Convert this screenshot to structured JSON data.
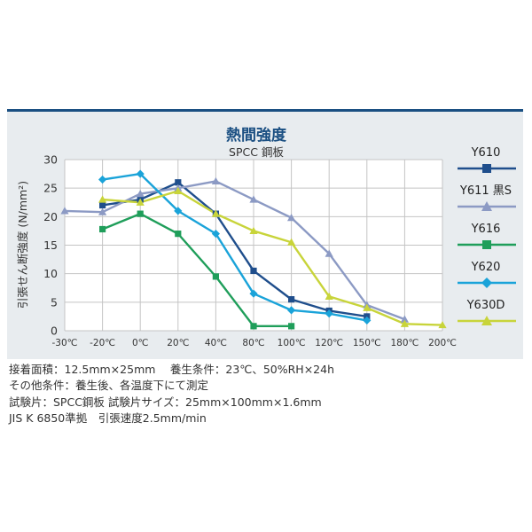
{
  "chart_data": {
    "type": "line",
    "title": "熱間強度",
    "subtitle": "SPCC 鋼板",
    "ylabel": "引張せん断強度 (N/mm²)",
    "xlabel": "",
    "ylim": [
      0,
      30
    ],
    "yticks": [
      "0",
      "5",
      "10",
      "15",
      "20",
      "25",
      "30"
    ],
    "x": [
      "-30℃",
      "-20℃",
      "0℃",
      "20℃",
      "40℃",
      "80℃",
      "100℃",
      "120℃",
      "150℃",
      "180℃",
      "200℃"
    ],
    "grid": true,
    "legend_position": "right",
    "series": [
      {
        "name": "Y610",
        "color": "#1f4e8c",
        "marker": "square",
        "values": [
          null,
          22,
          23,
          26,
          20.5,
          10.5,
          5.5,
          3.5,
          2.5,
          null,
          null
        ]
      },
      {
        "name": "Y611 黒S",
        "color": "#8c9ac4",
        "marker": "triangle",
        "values": [
          21,
          20.8,
          24,
          25,
          26.2,
          23,
          19.8,
          13.5,
          4.5,
          2,
          null
        ]
      },
      {
        "name": "Y616",
        "color": "#1f9e5a",
        "marker": "square",
        "values": [
          null,
          17.8,
          20.5,
          17,
          9.5,
          0.8,
          0.8,
          null,
          null,
          null,
          null
        ]
      },
      {
        "name": "Y620",
        "color": "#1aa3d9",
        "marker": "diamond",
        "values": [
          null,
          26.5,
          27.5,
          21,
          17,
          6.5,
          3.6,
          3,
          1.8,
          null,
          null
        ]
      },
      {
        "name": "Y630D",
        "color": "#c8d43a",
        "marker": "triangle",
        "values": [
          null,
          23,
          22.5,
          24.5,
          20.5,
          17.5,
          15.5,
          6,
          4,
          1.2,
          1
        ],
        "dashed_segment": [
          3,
          5
        ]
      }
    ]
  },
  "notes": [
    "接着面積：12.5mm×25mm　 養生条件：23℃、50%RH×24h",
    "その他条件：養生後、各温度下にて測定",
    "試験片：SPCC鋼板 試験片サイズ：25mm×100mm×1.6mm",
    "JIS K 6850準拠　引張速度2.5mm/min"
  ]
}
